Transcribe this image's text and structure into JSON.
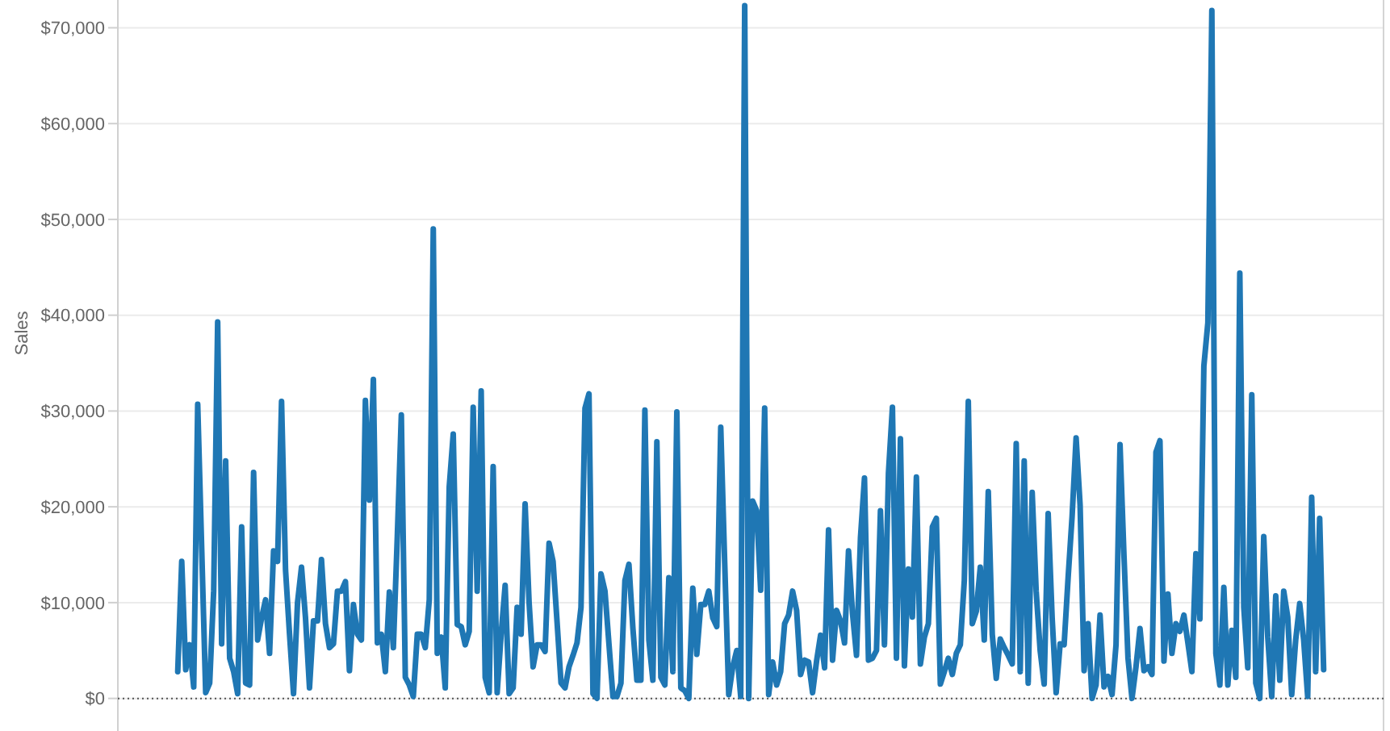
{
  "chart_data": {
    "type": "line",
    "ylabel": "Sales",
    "categories": [
      null,
      null,
      null,
      null,
      null,
      null,
      null,
      null,
      null,
      null,
      null,
      null,
      null,
      null,
      null,
      null,
      null,
      null,
      null,
      null,
      null,
      null,
      null,
      null,
      null,
      null,
      null,
      null,
      null,
      null,
      null,
      null,
      null,
      null,
      null,
      null,
      null,
      null,
      null,
      null,
      null,
      null,
      null,
      null,
      null,
      null,
      null,
      null,
      null,
      null,
      null,
      null,
      null,
      null,
      null,
      null,
      null,
      null,
      null,
      null,
      null,
      null,
      null,
      null,
      null,
      null,
      null,
      null,
      null,
      null,
      null,
      null,
      null,
      null,
      null,
      null,
      null,
      null,
      null,
      null,
      null,
      null,
      null,
      null,
      null,
      null,
      null,
      null,
      null,
      null,
      null,
      null,
      null,
      null,
      null,
      null,
      null,
      null,
      null,
      null,
      null,
      null,
      null,
      null,
      null,
      null,
      null,
      null,
      null,
      null,
      null,
      null,
      null,
      null,
      null,
      null,
      null,
      null,
      null,
      null,
      null,
      null,
      null,
      null,
      null,
      null,
      null,
      null,
      null,
      null,
      null,
      null,
      null,
      null,
      null,
      null,
      null,
      null,
      null,
      null,
      null,
      null,
      null,
      null,
      null,
      null,
      null,
      null,
      null,
      null,
      null,
      null,
      null,
      null,
      null,
      null,
      null,
      null,
      null,
      null,
      null,
      null,
      null,
      null,
      null,
      null,
      null,
      null,
      null,
      null,
      null,
      null,
      null,
      null,
      null,
      null,
      null,
      null,
      null,
      null,
      null,
      null,
      null,
      null,
      null,
      null,
      null,
      null,
      null,
      null,
      null,
      null,
      null,
      null,
      null,
      null,
      null,
      null,
      null,
      null,
      null,
      null,
      null,
      null,
      null,
      null,
      null,
      null,
      null,
      null,
      null,
      null,
      null,
      null,
      null,
      null,
      null,
      null,
      null,
      null,
      null,
      null,
      null,
      null,
      null,
      null,
      null,
      null,
      null,
      null,
      null,
      null,
      null,
      null,
      null,
      null,
      null,
      null,
      null,
      null,
      null,
      null,
      null,
      null,
      null,
      null,
      null,
      null,
      null,
      null,
      null,
      null,
      null,
      null,
      null,
      null,
      null,
      null,
      null,
      null,
      null,
      null,
      null,
      null,
      null,
      null,
      null,
      null,
      null,
      null,
      null,
      null,
      null,
      null,
      null,
      null,
      null,
      null,
      null,
      null,
      null,
      null,
      null,
      null,
      null,
      null,
      null,
      null
    ],
    "series": [
      {
        "color": "#1f77b4",
        "values": [
          2800,
          14300,
          3000,
          5600,
          1200,
          30700,
          15600,
          600,
          1600,
          11200,
          39300,
          5700,
          24800,
          4200,
          2800,
          500,
          17900,
          1600,
          1400,
          23600,
          6100,
          8400,
          10300,
          4700,
          15400,
          14300,
          31000,
          13400,
          6700,
          500,
          10000,
          13700,
          8400,
          1100,
          8100,
          8100,
          14500,
          7800,
          5300,
          5700,
          11200,
          11200,
          12200,
          2900,
          9800,
          6700,
          6100,
          31100,
          20700,
          33300,
          5800,
          6700,
          2800,
          11100,
          5300,
          17000,
          29600,
          2200,
          1400,
          200,
          6700,
          6700,
          5300,
          10300,
          49000,
          4700,
          6400,
          1100,
          22100,
          27600,
          7700,
          7500,
          5600,
          7000,
          30400,
          11200,
          32100,
          2200,
          600,
          24200,
          600,
          6700,
          11800,
          500,
          1100,
          9500,
          6700,
          20300,
          10000,
          3300,
          5600,
          5600,
          4900,
          16200,
          14300,
          8000,
          1600,
          1100,
          3300,
          4500,
          5800,
          9500,
          30300,
          31800,
          500,
          0,
          13000,
          11200,
          5700,
          200,
          200,
          1600,
          12300,
          14000,
          7300,
          1900,
          1900,
          30100,
          6100,
          1900,
          26800,
          2200,
          1400,
          12600,
          2800,
          29900,
          1100,
          800,
          0,
          11500,
          4600,
          9800,
          9800,
          11200,
          8400,
          7500,
          28300,
          14000,
          400,
          3300,
          5000,
          200,
          72300,
          0,
          20600,
          19600,
          11300,
          30300,
          400,
          3800,
          1400,
          2800,
          7800,
          8700,
          11200,
          9200,
          2500,
          4000,
          3800,
          600,
          3900,
          6600,
          3200,
          17600,
          4000,
          9200,
          8100,
          5800,
          15400,
          8900,
          4500,
          16800,
          23000,
          4000,
          4200,
          5000,
          19600,
          5600,
          23500,
          30400,
          4200,
          27100,
          3400,
          13500,
          8500,
          23100,
          3600,
          6400,
          7800,
          17900,
          18800,
          1500,
          2800,
          4200,
          2500,
          4700,
          5600,
          12300,
          31000,
          7800,
          9100,
          13700,
          6100,
          21600,
          6700,
          2100,
          6200,
          5300,
          4500,
          3600,
          26600,
          2800,
          24800,
          1600,
          21500,
          11200,
          5000,
          1500,
          19300,
          8400,
          600,
          5700,
          5600,
          12600,
          19000,
          27200,
          20200,
          2900,
          7800,
          0,
          1400,
          8700,
          1200,
          2300,
          400,
          5600,
          26500,
          14800,
          4200,
          0,
          3300,
          7300,
          2900,
          3300,
          2500,
          25700,
          26900,
          3900,
          10900,
          4700,
          7800,
          7000,
          8700,
          5800,
          2800,
          15100,
          8300,
          34700,
          39200,
          71800,
          4700,
          1400,
          11600,
          1400,
          7100,
          2200,
          44400,
          9500,
          3200,
          31700,
          1600,
          0,
          16900,
          6400,
          200,
          10700,
          1900,
          11200,
          8500,
          400,
          6100,
          9900,
          6100,
          200,
          21000,
          2800,
          18800,
          3000
        ]
      }
    ],
    "ylim": [
      -3400,
      72900
    ],
    "yticks": [
      {
        "value": 0,
        "label": "$0"
      },
      {
        "value": 10000,
        "label": "$10,000"
      },
      {
        "value": 20000,
        "label": "$20,000"
      },
      {
        "value": 30000,
        "label": "$30,000"
      },
      {
        "value": 40000,
        "label": "$40,000"
      },
      {
        "value": 50000,
        "label": "$50,000"
      },
      {
        "value": 60000,
        "label": "$60,000"
      },
      {
        "value": 70000,
        "label": "$70,000"
      }
    ],
    "ref_lines": [
      {
        "axis": "y",
        "value": 0,
        "line_style": "dotted",
        "color": "#555555"
      }
    ],
    "grid": "y",
    "tick_labels": "y",
    "marker": "none",
    "line_style": "solid"
  }
}
